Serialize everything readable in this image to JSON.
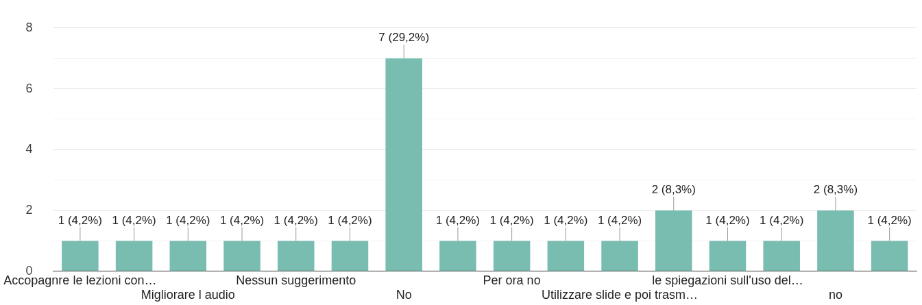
{
  "chart_data": {
    "type": "bar",
    "categories": [
      "Accopagnre le lezioni con…",
      null,
      "Migliorare l audio",
      null,
      "Nessun suggerimento",
      null,
      "No",
      null,
      "Per ora no",
      null,
      "Utilizzare slide e poi trasm…",
      null,
      "le spiegazioni sull'uso del…",
      null,
      "no",
      null
    ],
    "values": [
      1,
      1,
      1,
      1,
      1,
      1,
      7,
      1,
      1,
      1,
      1,
      2,
      1,
      1,
      2,
      1
    ],
    "value_labels": [
      "1 (4,2%)",
      "1 (4,2%)",
      "1 (4,2%)",
      "1 (4,2%)",
      "1 (4,2%)",
      "1 (4,2%)",
      "7 (29,2%)",
      "1 (4,2%)",
      "1 (4,2%)",
      "1 (4,2%)",
      "1 (4,2%)",
      "2 (8,3%)",
      "1 (4,2%)",
      "1 (4,2%)",
      "2 (8,3%)",
      "1 (4,2%)"
    ],
    "color": "#79bcb0",
    "ylim": [
      0,
      8
    ],
    "yticks": [
      0,
      {
        "value": 1,
        "label": null
      },
      2,
      {
        "value": 3,
        "label": null
      },
      4,
      {
        "value": 5,
        "label": null
      },
      6,
      {
        "value": 7,
        "label": null
      },
      8
    ],
    "grid": "y",
    "legend": false
  }
}
